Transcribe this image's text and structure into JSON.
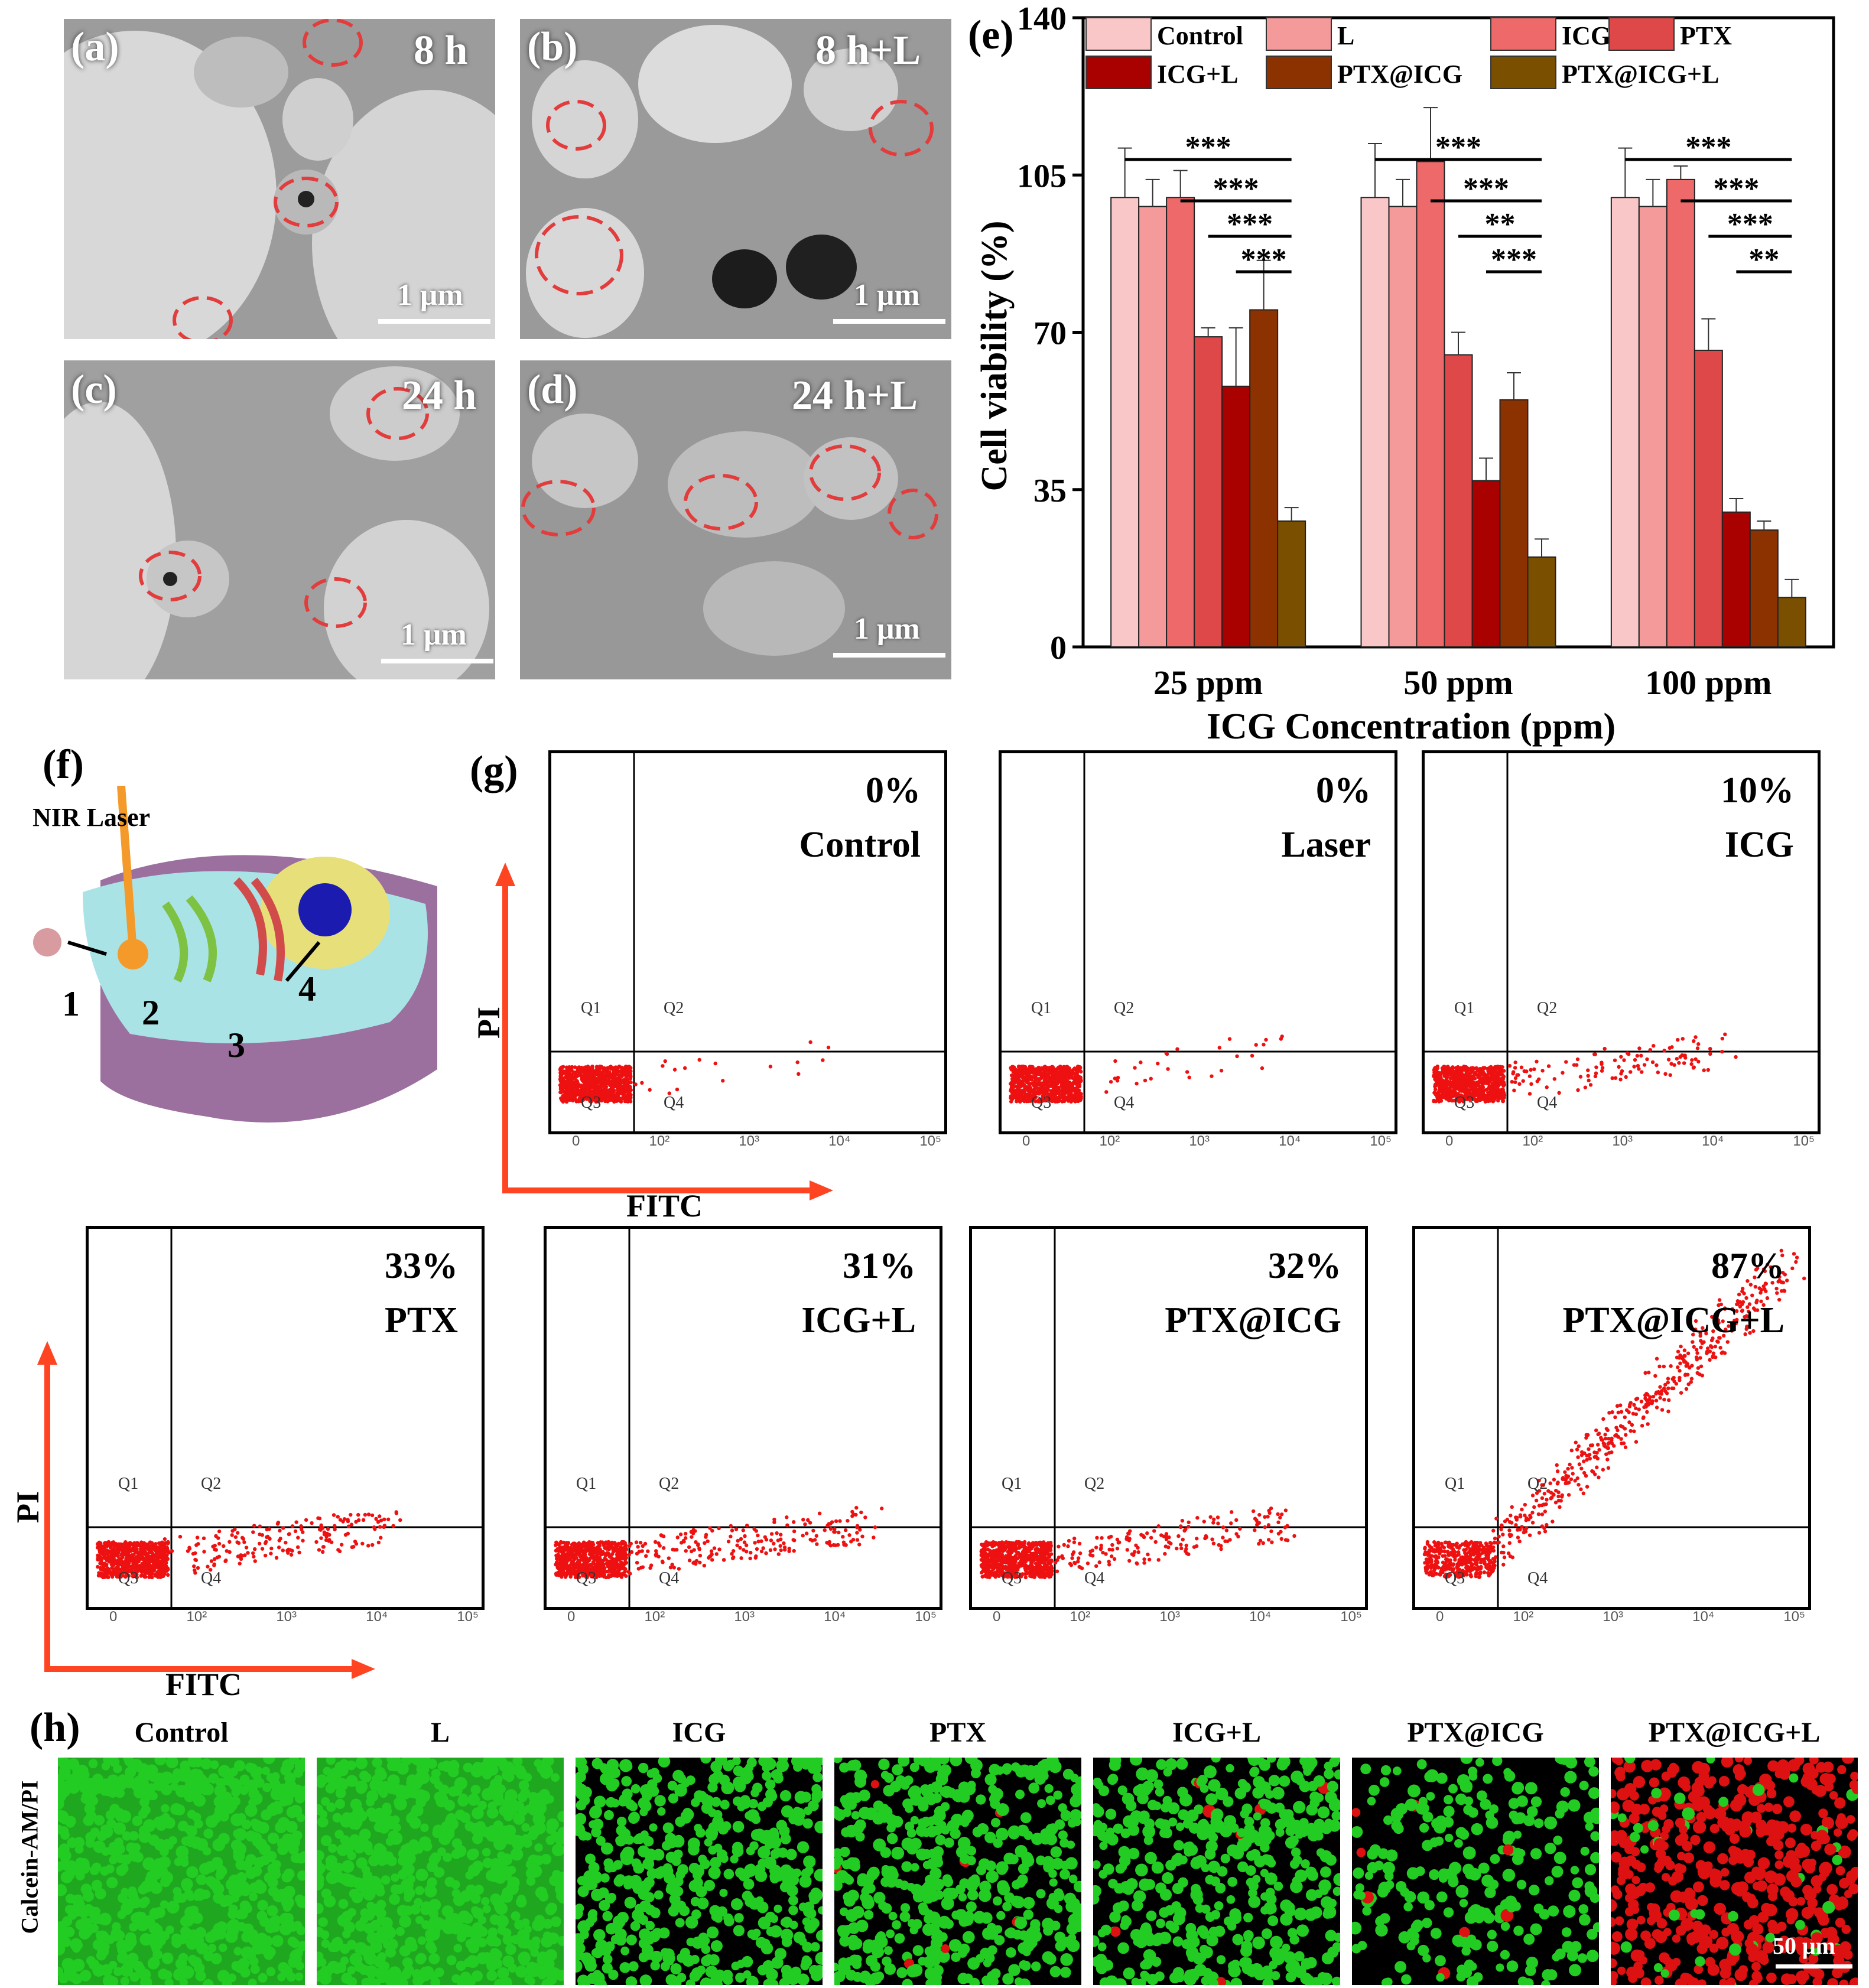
{
  "tem_panels": [
    {
      "label": "(a)",
      "time": "8 h",
      "scale": "1 μm"
    },
    {
      "label": "(b)",
      "time": "8 h+L",
      "scale": "1 μm"
    },
    {
      "label": "(c)",
      "time": "24 h",
      "scale": "1 μm"
    },
    {
      "label": "(d)",
      "time": "24 h+L",
      "scale": "1 μm"
    }
  ],
  "chart_label": "(e)",
  "chart_data": {
    "type": "bar",
    "categories": [
      "25 ppm",
      "50 ppm",
      "100 ppm"
    ],
    "xlabel": "ICG Concentration (ppm)",
    "ylabel": "Cell viability (%)",
    "ylim": [
      0,
      140
    ],
    "yticks": [
      0,
      35,
      70,
      105,
      140
    ],
    "legend": "top",
    "series": [
      {
        "name": "Control",
        "color": "#f9c7c7",
        "values": [
          100,
          100,
          100
        ],
        "errors": [
          11,
          12,
          11
        ]
      },
      {
        "name": "L",
        "color": "#f59a9a",
        "values": [
          98,
          98,
          98
        ],
        "errors": [
          6,
          6,
          6
        ]
      },
      {
        "name": "ICG",
        "color": "#ee6a6a",
        "values": [
          100,
          108,
          104
        ],
        "errors": [
          6,
          12,
          3
        ]
      },
      {
        "name": "PTX",
        "color": "#de4848",
        "values": [
          69,
          65,
          66
        ],
        "errors": [
          2,
          5,
          7
        ]
      },
      {
        "name": "ICG+L",
        "color": "#a90000",
        "values": [
          58,
          37,
          30
        ],
        "errors": [
          13,
          5,
          3
        ]
      },
      {
        "name": "PTX@ICG",
        "color": "#8b3200",
        "values": [
          75,
          55,
          26
        ],
        "errors": [
          11,
          6,
          2
        ]
      },
      {
        "name": "PTX@ICG+L",
        "color": "#7a5000",
        "values": [
          28,
          20,
          11
        ],
        "errors": [
          3,
          4,
          4
        ]
      }
    ],
    "significance": [
      [
        "***",
        "***",
        "***",
        "***"
      ],
      [
        "***",
        "***",
        "**",
        "***"
      ],
      [
        "***",
        "***",
        "***",
        "**"
      ]
    ]
  },
  "schematic": {
    "label": "(f)",
    "laser": "NIR Laser",
    "steps": [
      "1",
      "2",
      "3",
      "4"
    ]
  },
  "flow": {
    "label": "(g)",
    "axis_x": "FITC",
    "axis_y": "PI",
    "quadrants": [
      "Q1",
      "Q2",
      "Q3",
      "Q4"
    ],
    "ticks": [
      "0",
      "10²",
      "10³",
      "10⁴",
      "10⁵"
    ],
    "panels": [
      {
        "pct": "0%",
        "name": "Control"
      },
      {
        "pct": "0%",
        "name": "Laser"
      },
      {
        "pct": "10%",
        "name": "ICG"
      },
      {
        "pct": "33%",
        "name": "PTX"
      },
      {
        "pct": "31%",
        "name": "ICG+L"
      },
      {
        "pct": "32%",
        "name": "PTX@ICG"
      },
      {
        "pct": "87%",
        "name": "PTX@ICG+L"
      }
    ]
  },
  "fluorescence": {
    "label": "(h)",
    "ylabel": "Calcein-AM/PI",
    "scale": "50 μm",
    "images": [
      "Control",
      "L",
      "ICG",
      "PTX",
      "ICG+L",
      "PTX@ICG",
      "PTX@ICG+L"
    ],
    "colors": {
      "live": "#22cc22",
      "dead": "#dd1111"
    }
  }
}
